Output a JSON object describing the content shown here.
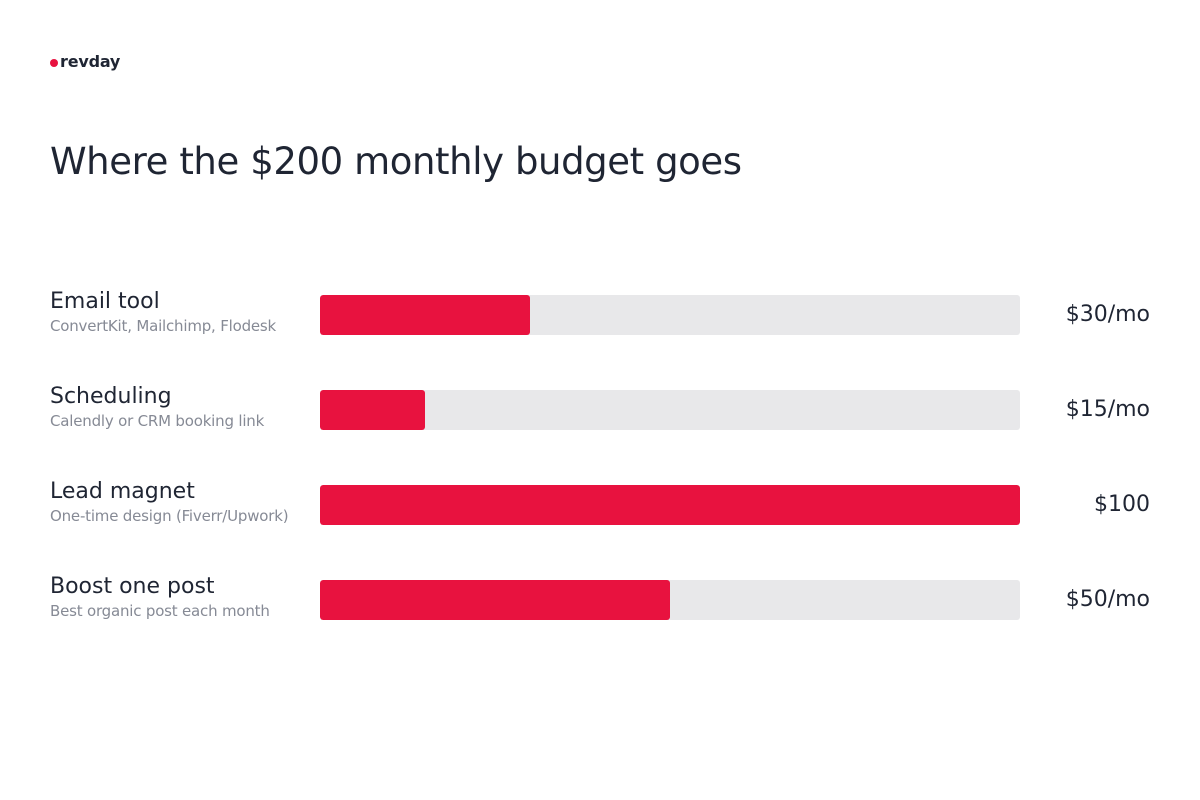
{
  "brand": {
    "name": "revday",
    "accent_color": "#e8123f"
  },
  "chart_data": {
    "type": "bar",
    "orientation": "horizontal",
    "title": "Where the $200 monthly budget goes",
    "xlabel": "",
    "ylabel": "",
    "xlim": [
      0,
      100
    ],
    "grid": false,
    "categories": [
      "Email tool",
      "Scheduling",
      "Lead magnet",
      "Boost one post"
    ],
    "subtitles": [
      "ConvertKit, Mailchimp, Flodesk",
      "Calendly or CRM booking link",
      "One-time design (Fiverr/Upwork)",
      "Best organic post each month"
    ],
    "values": [
      30,
      15,
      100,
      50
    ],
    "value_labels": [
      "$30/mo",
      "$15/mo",
      "$100",
      "$50/mo"
    ],
    "bar_color": "#e8123f",
    "track_color": "#e8e8ea"
  }
}
